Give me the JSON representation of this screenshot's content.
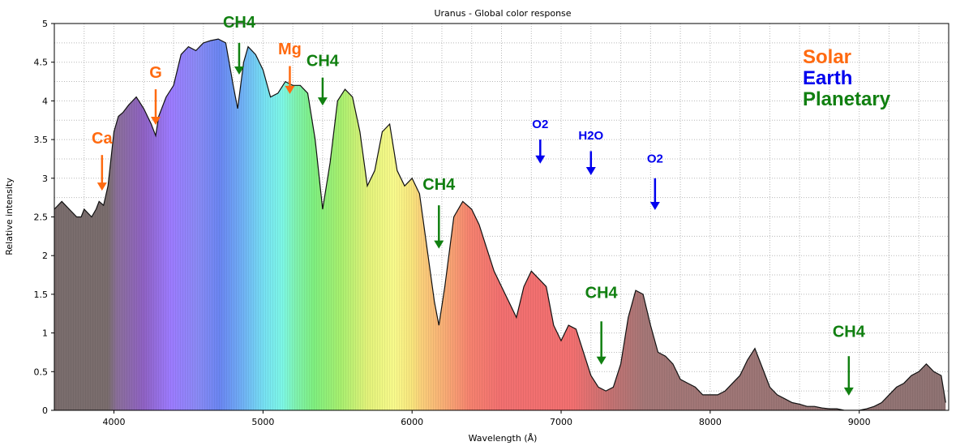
{
  "chart_data": {
    "type": "area",
    "title": "Uranus - Global color response",
    "xlabel": "Wavelength (Å)",
    "ylabel": "Relative intensity",
    "xlim": [
      3600,
      9600
    ],
    "ylim": [
      0,
      5
    ],
    "grid": true,
    "x_ticks": [
      "4000",
      "5000",
      "6000",
      "7000",
      "8000",
      "9000"
    ],
    "y_ticks": [
      "0",
      "0.5",
      "1",
      "1.5",
      "2",
      "2.5",
      "3",
      "3.5",
      "4",
      "4.5",
      "5"
    ],
    "spectrum": {
      "x": [
        3600,
        3650,
        3700,
        3750,
        3780,
        3800,
        3850,
        3880,
        3900,
        3930,
        3960,
        4000,
        4030,
        4060,
        4100,
        4150,
        4200,
        4250,
        4280,
        4300,
        4350,
        4400,
        4450,
        4500,
        4550,
        4600,
        4650,
        4700,
        4750,
        4800,
        4830,
        4870,
        4900,
        4950,
        5000,
        5050,
        5100,
        5150,
        5200,
        5250,
        5300,
        5350,
        5400,
        5450,
        5500,
        5550,
        5600,
        5650,
        5700,
        5750,
        5800,
        5850,
        5900,
        5950,
        6000,
        6050,
        6100,
        6150,
        6180,
        6220,
        6280,
        6340,
        6400,
        6450,
        6500,
        6550,
        6600,
        6650,
        6700,
        6750,
        6800,
        6850,
        6900,
        6950,
        7000,
        7050,
        7100,
        7150,
        7200,
        7250,
        7300,
        7350,
        7400,
        7450,
        7500,
        7550,
        7600,
        7650,
        7700,
        7750,
        7800,
        7850,
        7900,
        7950,
        8000,
        8050,
        8100,
        8150,
        8200,
        8250,
        8300,
        8350,
        8400,
        8450,
        8500,
        8550,
        8600,
        8650,
        8700,
        8750,
        8800,
        8850,
        8900,
        8950,
        9000,
        9050,
        9100,
        9150,
        9200,
        9250,
        9300,
        9350,
        9400,
        9450,
        9500,
        9550,
        9580
      ],
      "y": [
        2.6,
        2.7,
        2.6,
        2.5,
        2.5,
        2.6,
        2.5,
        2.6,
        2.7,
        2.65,
        2.9,
        3.6,
        3.8,
        3.85,
        3.95,
        4.05,
        3.9,
        3.7,
        3.55,
        3.8,
        4.05,
        4.2,
        4.6,
        4.7,
        4.65,
        4.75,
        4.78,
        4.8,
        4.75,
        4.2,
        3.9,
        4.5,
        4.7,
        4.6,
        4.4,
        4.05,
        4.1,
        4.25,
        4.2,
        4.2,
        4.1,
        3.5,
        2.6,
        3.2,
        4.0,
        4.15,
        4.05,
        3.6,
        2.9,
        3.1,
        3.6,
        3.7,
        3.1,
        2.9,
        3.0,
        2.8,
        2.1,
        1.4,
        1.1,
        1.6,
        2.5,
        2.7,
        2.6,
        2.4,
        2.1,
        1.8,
        1.6,
        1.4,
        1.2,
        1.6,
        1.8,
        1.7,
        1.6,
        1.1,
        0.9,
        1.1,
        1.05,
        0.75,
        0.45,
        0.3,
        0.25,
        0.3,
        0.6,
        1.2,
        1.55,
        1.5,
        1.1,
        0.75,
        0.7,
        0.6,
        0.4,
        0.35,
        0.3,
        0.2,
        0.2,
        0.2,
        0.25,
        0.35,
        0.45,
        0.65,
        0.8,
        0.55,
        0.3,
        0.2,
        0.15,
        0.1,
        0.08,
        0.05,
        0.05,
        0.03,
        0.02,
        0.02,
        0.0,
        0.0,
        0.0,
        0.02,
        0.05,
        0.1,
        0.2,
        0.3,
        0.35,
        0.45,
        0.5,
        0.6,
        0.5,
        0.45,
        0.1
      ]
    },
    "legend": [
      {
        "label": "Solar",
        "color": "#ff6a10"
      },
      {
        "label": "Earth",
        "color": "#0000ee"
      },
      {
        "label": "Planetary",
        "color": "#118011"
      }
    ],
    "annotations": [
      {
        "label": "Ca",
        "group": "solar",
        "x": 3920,
        "y": 2.85,
        "arrow_len": 0.45,
        "label_dy": 0.4,
        "size": 20
      },
      {
        "label": "G",
        "group": "solar",
        "x": 4280,
        "y": 3.7,
        "arrow_len": 0.45,
        "label_dy": 0.4,
        "size": 20
      },
      {
        "label": "Mg",
        "group": "solar",
        "x": 5180,
        "y": 4.1,
        "arrow_len": 0.35,
        "label_dy": 0.4,
        "size": 20
      },
      {
        "label": "CH4",
        "group": "planetary",
        "x": 4840,
        "y": 4.35,
        "arrow_len": 0.4,
        "label_dy": 0.45,
        "size": 20
      },
      {
        "label": "CH4",
        "group": "planetary",
        "x": 5400,
        "y": 3.95,
        "arrow_len": 0.35,
        "label_dy": 0.4,
        "size": 20
      },
      {
        "label": "CH4",
        "group": "planetary",
        "x": 6180,
        "y": 2.1,
        "arrow_len": 0.55,
        "label_dy": 0.45,
        "size": 20
      },
      {
        "label": "CH4",
        "group": "planetary",
        "x": 7270,
        "y": 0.6,
        "arrow_len": 0.55,
        "label_dy": 0.55,
        "size": 20
      },
      {
        "label": "CH4",
        "group": "planetary",
        "x": 8930,
        "y": 0.2,
        "arrow_len": 0.5,
        "label_dy": 0.5,
        "size": 20
      },
      {
        "label": "O2",
        "group": "earth",
        "x": 6860,
        "y": 3.2,
        "arrow_len": 0.3,
        "label_dy": 0.4,
        "size": 15
      },
      {
        "label": "H2O",
        "group": "earth",
        "x": 7200,
        "y": 3.05,
        "arrow_len": 0.3,
        "label_dy": 0.4,
        "size": 15
      },
      {
        "label": "O2",
        "group": "earth",
        "x": 7630,
        "y": 2.6,
        "arrow_len": 0.4,
        "label_dy": 0.45,
        "size": 15
      }
    ]
  }
}
